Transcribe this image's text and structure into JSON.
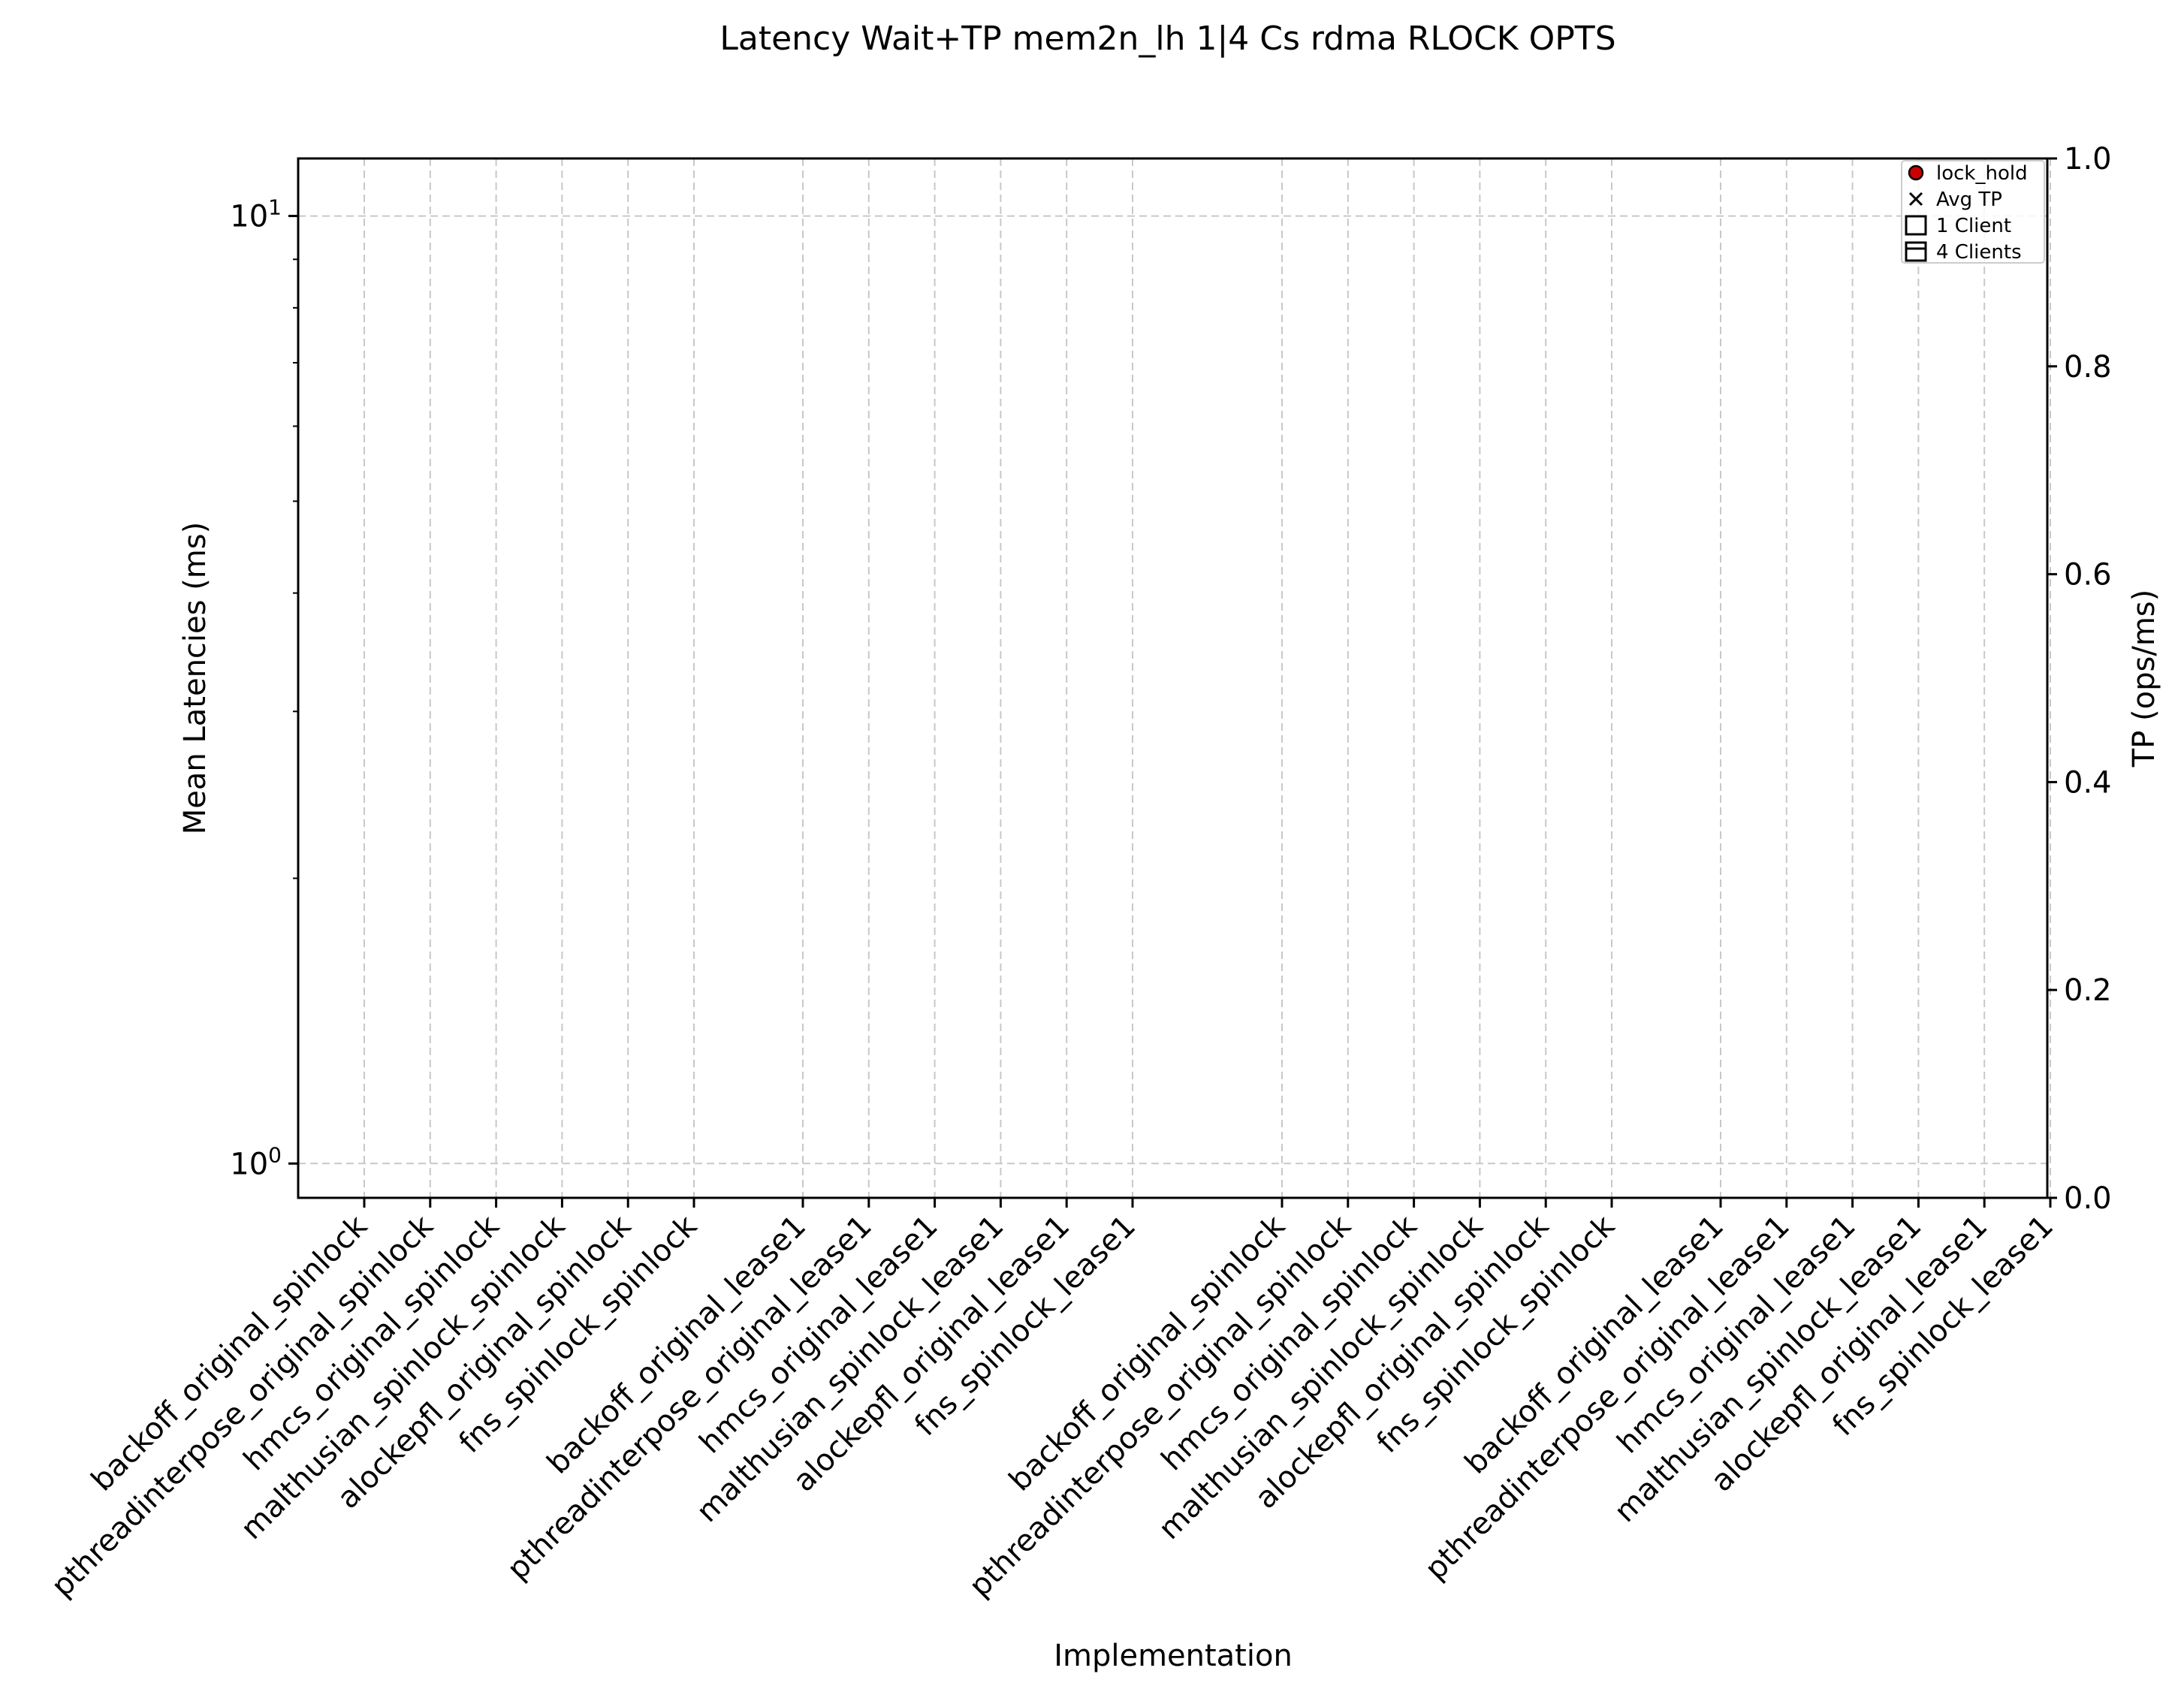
{
  "chart_data": {
    "type": "scatter",
    "title": "Latency Wait+TP mem2n_lh 1|4 Cs rdma RLOCK OPTS",
    "xlabel": "Implementation",
    "ylabel": "Mean Latencies (ms)",
    "y2label": "TP (ops/ms)",
    "yscale": "log",
    "ylim": [
      0.92,
      11.5
    ],
    "y_ticks": [
      {
        "value": 1,
        "label_base": "10",
        "label_exp": "0"
      },
      {
        "value": 10,
        "label_base": "10",
        "label_exp": "1"
      }
    ],
    "y2lim": [
      0,
      1.0
    ],
    "y2_ticks": [
      "0.0",
      "0.2",
      "0.4",
      "0.6",
      "0.8",
      "1.0"
    ],
    "grid": true,
    "categories": [
      "backoff_original_spinlock",
      "pthreadinterpose_original_spinlock",
      "hmcs_original_spinlock",
      "malthusian_spinlock_spinlock",
      "alockepfl_original_spinlock",
      "fns_spinlock_spinlock",
      "backoff_original_lease1",
      "pthreadinterpose_original_lease1",
      "hmcs_original_lease1",
      "malthusian_spinlock_lease1",
      "alockepfl_original_lease1",
      "fns_spinlock_lease1",
      "backoff_original_spinlock",
      "pthreadinterpose_original_spinlock",
      "hmcs_original_spinlock",
      "malthusian_spinlock_spinlock",
      "alockepfl_original_spinlock",
      "fns_spinlock_spinlock",
      "backoff_original_lease1",
      "pthreadinterpose_original_lease1",
      "hmcs_original_lease1",
      "malthusian_spinlock_lease1",
      "alockepfl_original_lease1",
      "fns_spinlock_lease1"
    ],
    "series": [],
    "legend": {
      "placement": "top-right",
      "entries": [
        {
          "label": "lock_hold",
          "marker": "circle",
          "color": "#cc0000"
        },
        {
          "label": "Avg TP",
          "marker": "x"
        },
        {
          "label": "1 Client",
          "marker": "square"
        },
        {
          "label": "4 Clients",
          "marker": "square-lined"
        }
      ]
    },
    "colors": {
      "grid": "#c8c8c8",
      "axis": "#000000",
      "lock_hold": "#cc0000"
    }
  }
}
